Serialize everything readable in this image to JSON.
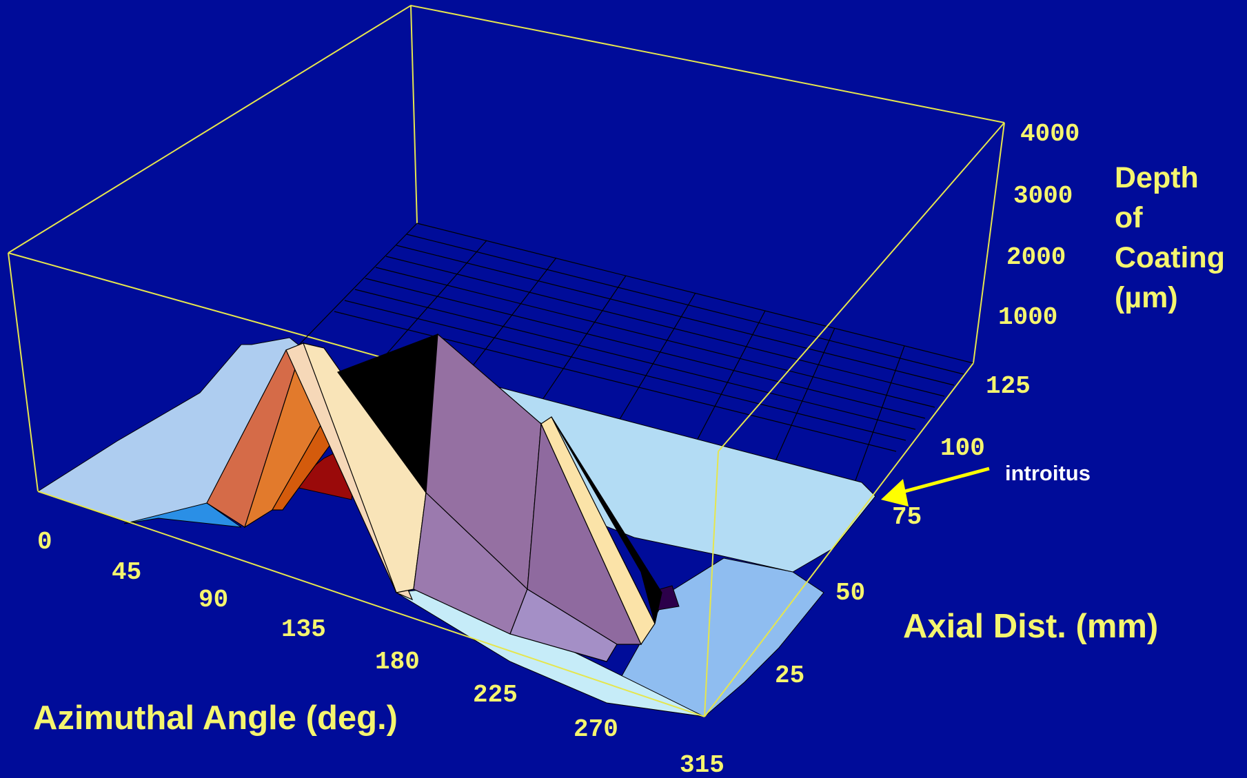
{
  "colors": {
    "background": "#000c99",
    "frame": "#e6e64d",
    "text": "#f5f56e",
    "annotation_text": "#ffffff",
    "arrow": "#ffff00",
    "surface_base": "#9ec8f2",
    "surface_light": "#b3e3f6",
    "peak_orange": "#e06a2e",
    "peak_cream": "#f9e4b8",
    "peak_purple": "#9b74a6",
    "shadow": "#000000"
  },
  "chart_data": {
    "type": "surface",
    "title": "",
    "x_axis": {
      "label": "Azimuthal Angle (deg.)",
      "ticks": [
        "0",
        "45",
        "90",
        "135",
        "180",
        "225",
        "270",
        "315"
      ],
      "range": [
        0,
        315
      ]
    },
    "y_axis": {
      "label": "Axial Dist. (mm)",
      "ticks": [
        "25",
        "50",
        "75",
        "100",
        "125"
      ],
      "range": [
        0,
        150
      ]
    },
    "z_axis": {
      "label": "Depth of Coating (µm)",
      "label_lines": [
        "Depth",
        "of",
        "Coating",
        "(µm)"
      ],
      "ticks": [
        "1000",
        "2000",
        "3000",
        "4000"
      ],
      "range": [
        0,
        4000
      ]
    },
    "grid": true,
    "annotation": {
      "text": "introitus",
      "points_to_axial_distance": 75
    },
    "approx_depth_profile_near_introitus": {
      "azimuth_deg": [
        0,
        45,
        90,
        135,
        180,
        225,
        270,
        315
      ],
      "depth_um": [
        300,
        600,
        2400,
        2700,
        700,
        3400,
        900,
        350
      ]
    }
  }
}
